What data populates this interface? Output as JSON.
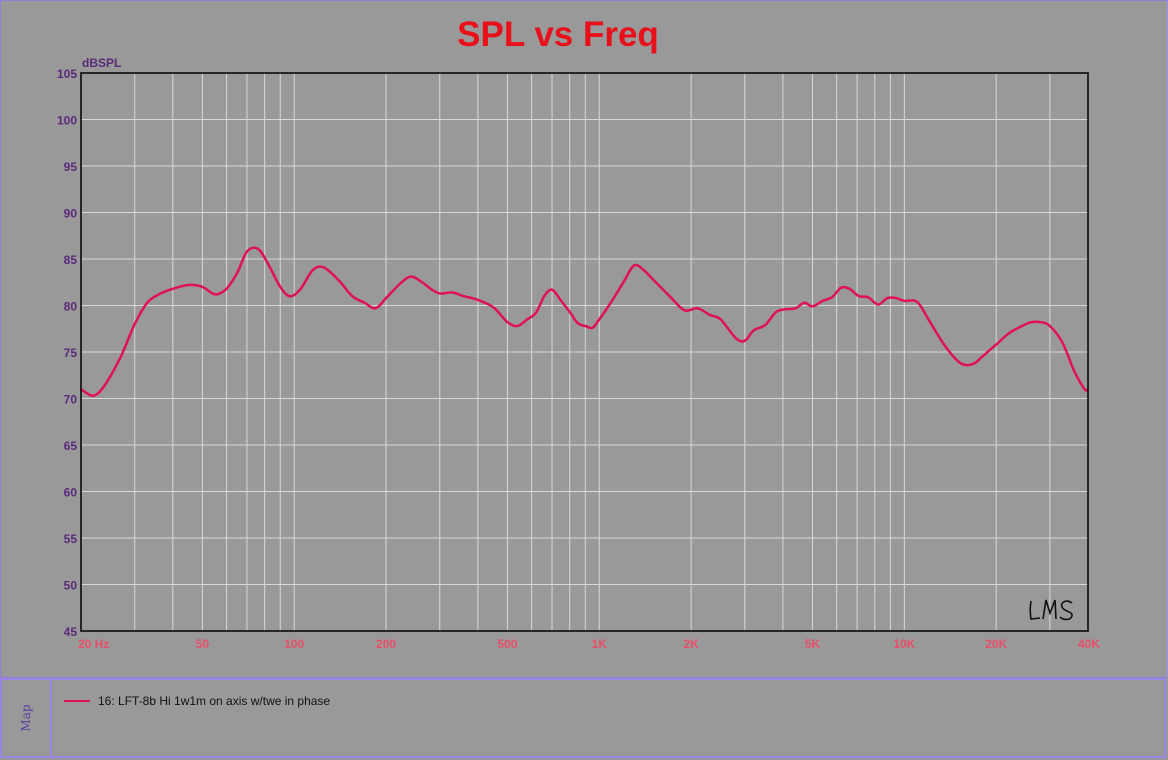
{
  "colors": {
    "background": "#999999",
    "grid": "#d8d8d8",
    "trace": "#e0105a",
    "title": "#e8101a",
    "axis_label": "#5a2a7a",
    "tick_label": "#e8506a",
    "frame": "#9b86e6"
  },
  "chart_data": {
    "type": "line",
    "title": "SPL vs Freq",
    "ylabel": "dBSPL",
    "xlabel": "",
    "x_scale": "log",
    "xlim": [
      20,
      40000
    ],
    "ylim": [
      45,
      105
    ],
    "grid": true,
    "legend_position": "bottom panel",
    "yticks": [
      105,
      100,
      95,
      90,
      85,
      80,
      75,
      70,
      65,
      60,
      55,
      50,
      45
    ],
    "xticks": [
      {
        "value": 20,
        "label": "20 Hz"
      },
      {
        "value": 50,
        "label": "50"
      },
      {
        "value": 100,
        "label": "100"
      },
      {
        "value": 200,
        "label": "200"
      },
      {
        "value": 500,
        "label": "500"
      },
      {
        "value": 1000,
        "label": "1K"
      },
      {
        "value": 2000,
        "label": "2K"
      },
      {
        "value": 5000,
        "label": "5K"
      },
      {
        "value": 10000,
        "label": "10K"
      },
      {
        "value": 20000,
        "label": "20K"
      },
      {
        "value": 40000,
        "label": "40K"
      }
    ],
    "series": [
      {
        "name": "16: LFT-8b Hi 1w1m on axis w/twe in phase",
        "x": [
          20,
          22,
          24,
          27,
          30,
          33,
          36,
          40,
          45,
          50,
          55,
          60,
          65,
          70,
          76,
          82,
          90,
          97,
          105,
          115,
          125,
          140,
          155,
          170,
          185,
          200,
          220,
          240,
          260,
          280,
          300,
          330,
          360,
          400,
          450,
          500,
          540,
          580,
          620,
          660,
          700,
          750,
          800,
          850,
          900,
          950,
          1000,
          1100,
          1200,
          1300,
          1400,
          1500,
          1700,
          1900,
          2100,
          2300,
          2500,
          2800,
          3000,
          3200,
          3500,
          3800,
          4100,
          4400,
          4700,
          5000,
          5400,
          5800,
          6200,
          6600,
          7100,
          7600,
          8200,
          8800,
          9400,
          10000,
          11000,
          12000,
          13500,
          15000,
          16000,
          17000,
          18000,
          20000,
          22000,
          24000,
          26000,
          28000,
          30000,
          33000,
          36000,
          39000,
          40000
        ],
        "y": [
          71,
          70.3,
          71.5,
          74.5,
          78,
          80.3,
          81.2,
          81.8,
          82.2,
          82,
          81.2,
          81.8,
          83.5,
          85.8,
          86.1,
          84.5,
          82,
          81,
          81.8,
          83.8,
          84.1,
          82.7,
          81,
          80.3,
          79.7,
          80.8,
          82.2,
          83.1,
          82.6,
          81.8,
          81.3,
          81.4,
          81,
          80.6,
          79.8,
          78.2,
          77.8,
          78.5,
          79.2,
          81,
          81.7,
          80.5,
          79.3,
          78.1,
          77.8,
          77.6,
          78.5,
          80.5,
          82.5,
          84.3,
          83.8,
          82.8,
          81,
          79.5,
          79.7,
          79,
          78.5,
          76.5,
          76.2,
          77.3,
          77.9,
          79.3,
          79.6,
          79.7,
          80.3,
          79.9,
          80.5,
          80.9,
          81.9,
          81.8,
          81,
          80.9,
          80.1,
          80.8,
          80.8,
          80.5,
          80.4,
          78.5,
          75.8,
          74,
          73.6,
          73.8,
          74.5,
          75.8,
          77,
          77.7,
          78.2,
          78.2,
          77.8,
          76,
          73,
          71,
          71
        ]
      }
    ]
  },
  "watermark": "LMS",
  "legend_panel": {
    "tab_label": "Map",
    "entry_label": "16: LFT-8b Hi 1w1m on axis w/twe in phase"
  }
}
